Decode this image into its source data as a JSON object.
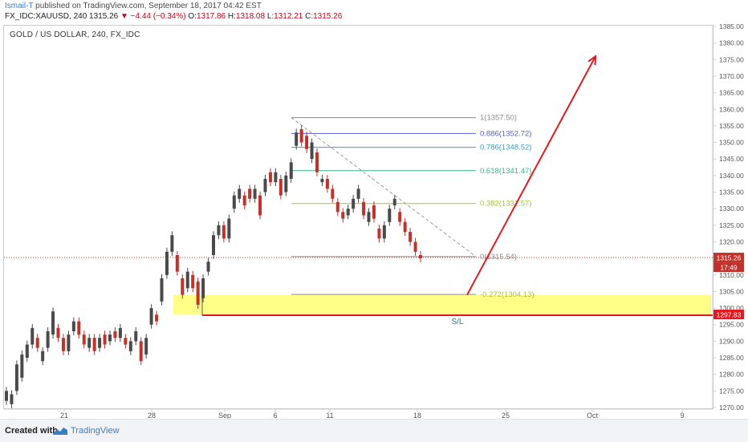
{
  "header": {
    "author": "Ismail-T",
    "published_text": "published on TradingView.com, September 18, 2017 04:42 EST",
    "symbol": "FX_IDC:XAUUSD, 240",
    "last": "1315.26",
    "change": "▼ −4.44 (−0.34%)",
    "o_label": "O:",
    "o_value": "1317.86",
    "h_label": "H:",
    "h_value": "1318.08",
    "l_label": "L:",
    "l_value": "1312.21",
    "c_label": "C:",
    "c_value": "1315.26"
  },
  "chart_title": "GOLD / US DOLLAR, 240, FX_IDC",
  "footer": {
    "created_with": "Created with",
    "brand": "TradingView"
  },
  "colors": {
    "up": "#4a4a4a",
    "down": "#c0322b",
    "arrow": "#e5181f",
    "zone": "#ffff55",
    "sl": "#e5181f"
  },
  "icons": [
    "tradingview-logo-icon"
  ],
  "chart_data": {
    "type": "candlestick",
    "title": "GOLD / US DOLLAR, 240, FX_IDC",
    "ylim": [
      1270,
      1385
    ],
    "y_ticks": [
      "1270.00",
      "1275.00",
      "1280.00",
      "1285.00",
      "1290.00",
      "1295.00",
      "1300.00",
      "1305.00",
      "1310.00",
      "1315.00",
      "1320.00",
      "1325.00",
      "1330.00",
      "1335.00",
      "1340.00",
      "1345.00",
      "1350.00",
      "1355.00",
      "1360.00",
      "1365.00",
      "1370.00",
      "1375.00",
      "1380.00",
      "1385.00"
    ],
    "x_ticks": [
      "21",
      "28",
      "Sep",
      "6",
      "11",
      "18",
      "25",
      "Oct",
      "9"
    ],
    "price_path": [
      [
        1272,
        1275
      ],
      [
        1271,
        1274
      ],
      [
        1275,
        1283
      ],
      [
        1279,
        1286
      ],
      [
        1285,
        1289
      ],
      [
        1289,
        1294
      ],
      [
        1291,
        1288
      ],
      [
        1284,
        1287
      ],
      [
        1288,
        1293
      ],
      [
        1292,
        1299
      ],
      [
        1294,
        1291
      ],
      [
        1291,
        1287
      ],
      [
        1287,
        1292
      ],
      [
        1293,
        1296
      ],
      [
        1296,
        1292
      ],
      [
        1292,
        1289
      ],
      [
        1288,
        1291
      ],
      [
        1291,
        1287
      ],
      [
        1288,
        1291
      ],
      [
        1292,
        1289
      ],
      [
        1290,
        1292
      ],
      [
        1293,
        1291
      ],
      [
        1291,
        1294
      ],
      [
        1291,
        1289
      ],
      [
        1287,
        1290
      ],
      [
        1290,
        1293
      ],
      [
        1290,
        1284
      ],
      [
        1286,
        1291
      ],
      [
        1295,
        1300
      ],
      [
        1298,
        1296
      ],
      [
        1302,
        1309
      ],
      [
        1310,
        1317
      ],
      [
        1317,
        1322
      ],
      [
        1316,
        1311
      ],
      [
        1309,
        1304
      ],
      [
        1306,
        1311
      ],
      [
        1310,
        1306
      ],
      [
        1308,
        1301
      ],
      [
        1303,
        1309
      ],
      [
        1311,
        1314
      ],
      [
        1316,
        1322
      ],
      [
        1322,
        1325
      ],
      [
        1325,
        1321
      ],
      [
        1321,
        1327
      ],
      [
        1330,
        1334
      ],
      [
        1333,
        1336
      ],
      [
        1334,
        1331
      ],
      [
        1336,
        1333
      ],
      [
        1333,
        1336
      ],
      [
        1334,
        1328
      ],
      [
        1335,
        1339
      ],
      [
        1341,
        1338
      ],
      [
        1338,
        1341
      ],
      [
        1339,
        1334
      ],
      [
        1335,
        1340
      ],
      [
        1339,
        1344
      ],
      [
        1349,
        1353
      ],
      [
        1354,
        1350
      ],
      [
        1352,
        1348
      ],
      [
        1345,
        1350
      ],
      [
        1347,
        1341
      ],
      [
        1338,
        1339
      ],
      [
        1339,
        1336
      ],
      [
        1336,
        1333
      ],
      [
        1332,
        1329
      ],
      [
        1329,
        1327
      ],
      [
        1328,
        1330
      ],
      [
        1330,
        1333
      ],
      [
        1333,
        1336
      ],
      [
        1332,
        1328
      ],
      [
        1326,
        1329
      ],
      [
        1331,
        1327
      ],
      [
        1324,
        1321
      ],
      [
        1321,
        1325
      ],
      [
        1326,
        1330
      ],
      [
        1331,
        1333
      ],
      [
        1329,
        1326
      ],
      [
        1326,
        1323
      ],
      [
        1323,
        1320
      ],
      [
        1320,
        1317
      ],
      [
        1316,
        1315
      ]
    ],
    "fib_levels": [
      {
        "label": "1(1357.50)",
        "value": 1357.5
      },
      {
        "label": "0.886(1352.72)",
        "value": 1352.72
      },
      {
        "label": "0.786(1348.52)",
        "value": 1348.52
      },
      {
        "label": "0.618(1341.47)",
        "value": 1341.47
      },
      {
        "label": "0.382(1331.57)",
        "value": 1331.57
      },
      {
        "label": "0(1315.54)",
        "value": 1315.54
      },
      {
        "label": "-0.272(1304.13)",
        "value": 1304.13
      }
    ],
    "zone": {
      "from": 1298,
      "to": 1304
    },
    "stop_loss": {
      "label": "S/L",
      "value": 1297.83,
      "tag": "1297.83"
    },
    "current_price": {
      "value": 1315.26,
      "tag": "1315.26",
      "countdown": "17:49"
    },
    "projection_arrow": {
      "from_value": 1304,
      "to_value": 1376
    }
  }
}
